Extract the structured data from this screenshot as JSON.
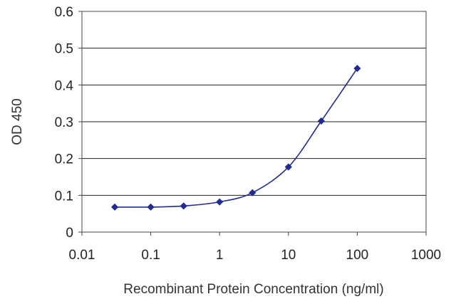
{
  "chart_data": {
    "type": "line",
    "xlabel": "Recombinant Protein Concentration (ng/ml)",
    "ylabel": "OD 450",
    "x_scale": "log",
    "xlim": [
      0.01,
      1000
    ],
    "ylim": [
      0,
      0.6
    ],
    "x_ticks": [
      "0.01",
      "0.1",
      "1",
      "10",
      "100",
      "1000"
    ],
    "y_ticks": [
      "0",
      "0.1",
      "0.2",
      "0.3",
      "0.4",
      "0.5",
      "0.6"
    ],
    "grid": "horizontal",
    "series": [
      {
        "x": [
          0.03,
          0.1,
          0.3,
          1,
          3,
          10,
          30,
          100
        ],
        "y": [
          0.068,
          0.068,
          0.071,
          0.082,
          0.107,
          0.177,
          0.302,
          0.445
        ]
      }
    ],
    "colors": {
      "series": "#1f2a9c",
      "grid": "#222222",
      "frame": "#444444"
    }
  }
}
